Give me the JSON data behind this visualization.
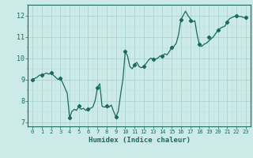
{
  "x": [
    0,
    0.25,
    0.5,
    0.75,
    1,
    1.25,
    1.5,
    1.75,
    2,
    2.25,
    2.5,
    2.75,
    3,
    3.25,
    3.5,
    3.75,
    4,
    4.25,
    4.5,
    4.75,
    5,
    5.25,
    5.5,
    5.75,
    6,
    6.25,
    6.5,
    6.75,
    7,
    7.25,
    7.5,
    7.75,
    8,
    8.25,
    8.5,
    8.75,
    9,
    9.25,
    9.5,
    9.75,
    10,
    10.25,
    10.5,
    10.75,
    11,
    11.25,
    11.5,
    11.75,
    12,
    12.25,
    12.5,
    12.75,
    13,
    13.25,
    13.5,
    13.75,
    14,
    14.25,
    14.5,
    14.75,
    15,
    15.25,
    15.5,
    15.75,
    16,
    16.25,
    16.5,
    16.75,
    17,
    17.25,
    17.5,
    17.75,
    18,
    18.25,
    18.5,
    18.75,
    19,
    19.25,
    19.5,
    19.75,
    20,
    20.25,
    20.5,
    20.75,
    21,
    21.25,
    21.5,
    21.75,
    22,
    22.25,
    22.5,
    22.75,
    23
  ],
  "y": [
    9.0,
    9.05,
    9.1,
    9.2,
    9.2,
    9.25,
    9.3,
    9.25,
    9.3,
    9.2,
    9.1,
    9.0,
    9.05,
    8.85,
    8.6,
    8.35,
    7.2,
    7.5,
    7.6,
    7.55,
    7.75,
    7.6,
    7.65,
    7.55,
    7.6,
    7.65,
    7.7,
    8.0,
    8.6,
    8.8,
    7.75,
    7.7,
    7.75,
    7.7,
    7.8,
    7.5,
    7.25,
    7.5,
    8.3,
    9.0,
    10.3,
    10.1,
    9.6,
    9.5,
    9.7,
    9.8,
    9.6,
    9.55,
    9.6,
    9.75,
    9.9,
    10.0,
    9.95,
    9.95,
    10.0,
    10.1,
    10.1,
    10.2,
    10.15,
    10.3,
    10.5,
    10.55,
    10.7,
    11.1,
    11.8,
    12.0,
    12.2,
    12.0,
    11.85,
    11.7,
    11.75,
    11.1,
    10.6,
    10.55,
    10.65,
    10.7,
    10.8,
    10.9,
    11.0,
    11.15,
    11.3,
    11.4,
    11.45,
    11.5,
    11.7,
    11.85,
    11.9,
    11.95,
    12.0,
    11.95,
    11.95,
    11.9,
    11.9
  ],
  "markers": {
    "x": [
      0,
      1,
      2,
      3,
      4,
      5,
      6,
      7,
      8,
      9,
      10,
      11,
      12,
      13,
      14,
      15,
      16,
      17,
      18,
      19,
      20,
      21,
      22,
      23
    ],
    "y": [
      9.0,
      9.2,
      9.3,
      9.05,
      7.2,
      7.75,
      7.6,
      8.6,
      7.75,
      7.25,
      10.3,
      9.7,
      9.6,
      9.95,
      10.1,
      10.5,
      11.8,
      11.75,
      10.65,
      11.0,
      11.3,
      11.7,
      12.0,
      11.9
    ]
  },
  "line_color": "#1a6b5a",
  "marker_color": "#1a6b5a",
  "bg_color": "#cceae8",
  "grid_major_color": "#aad4d0",
  "grid_minor_color": "#bde0dc",
  "xlabel": "Humidex (Indice chaleur)",
  "xlim": [
    -0.5,
    23.5
  ],
  "ylim": [
    6.8,
    12.5
  ],
  "yticks": [
    7,
    8,
    9,
    10,
    11,
    12
  ],
  "xticks": [
    0,
    1,
    2,
    3,
    4,
    5,
    6,
    7,
    8,
    9,
    10,
    11,
    12,
    13,
    14,
    15,
    16,
    17,
    18,
    19,
    20,
    21,
    22,
    23
  ]
}
